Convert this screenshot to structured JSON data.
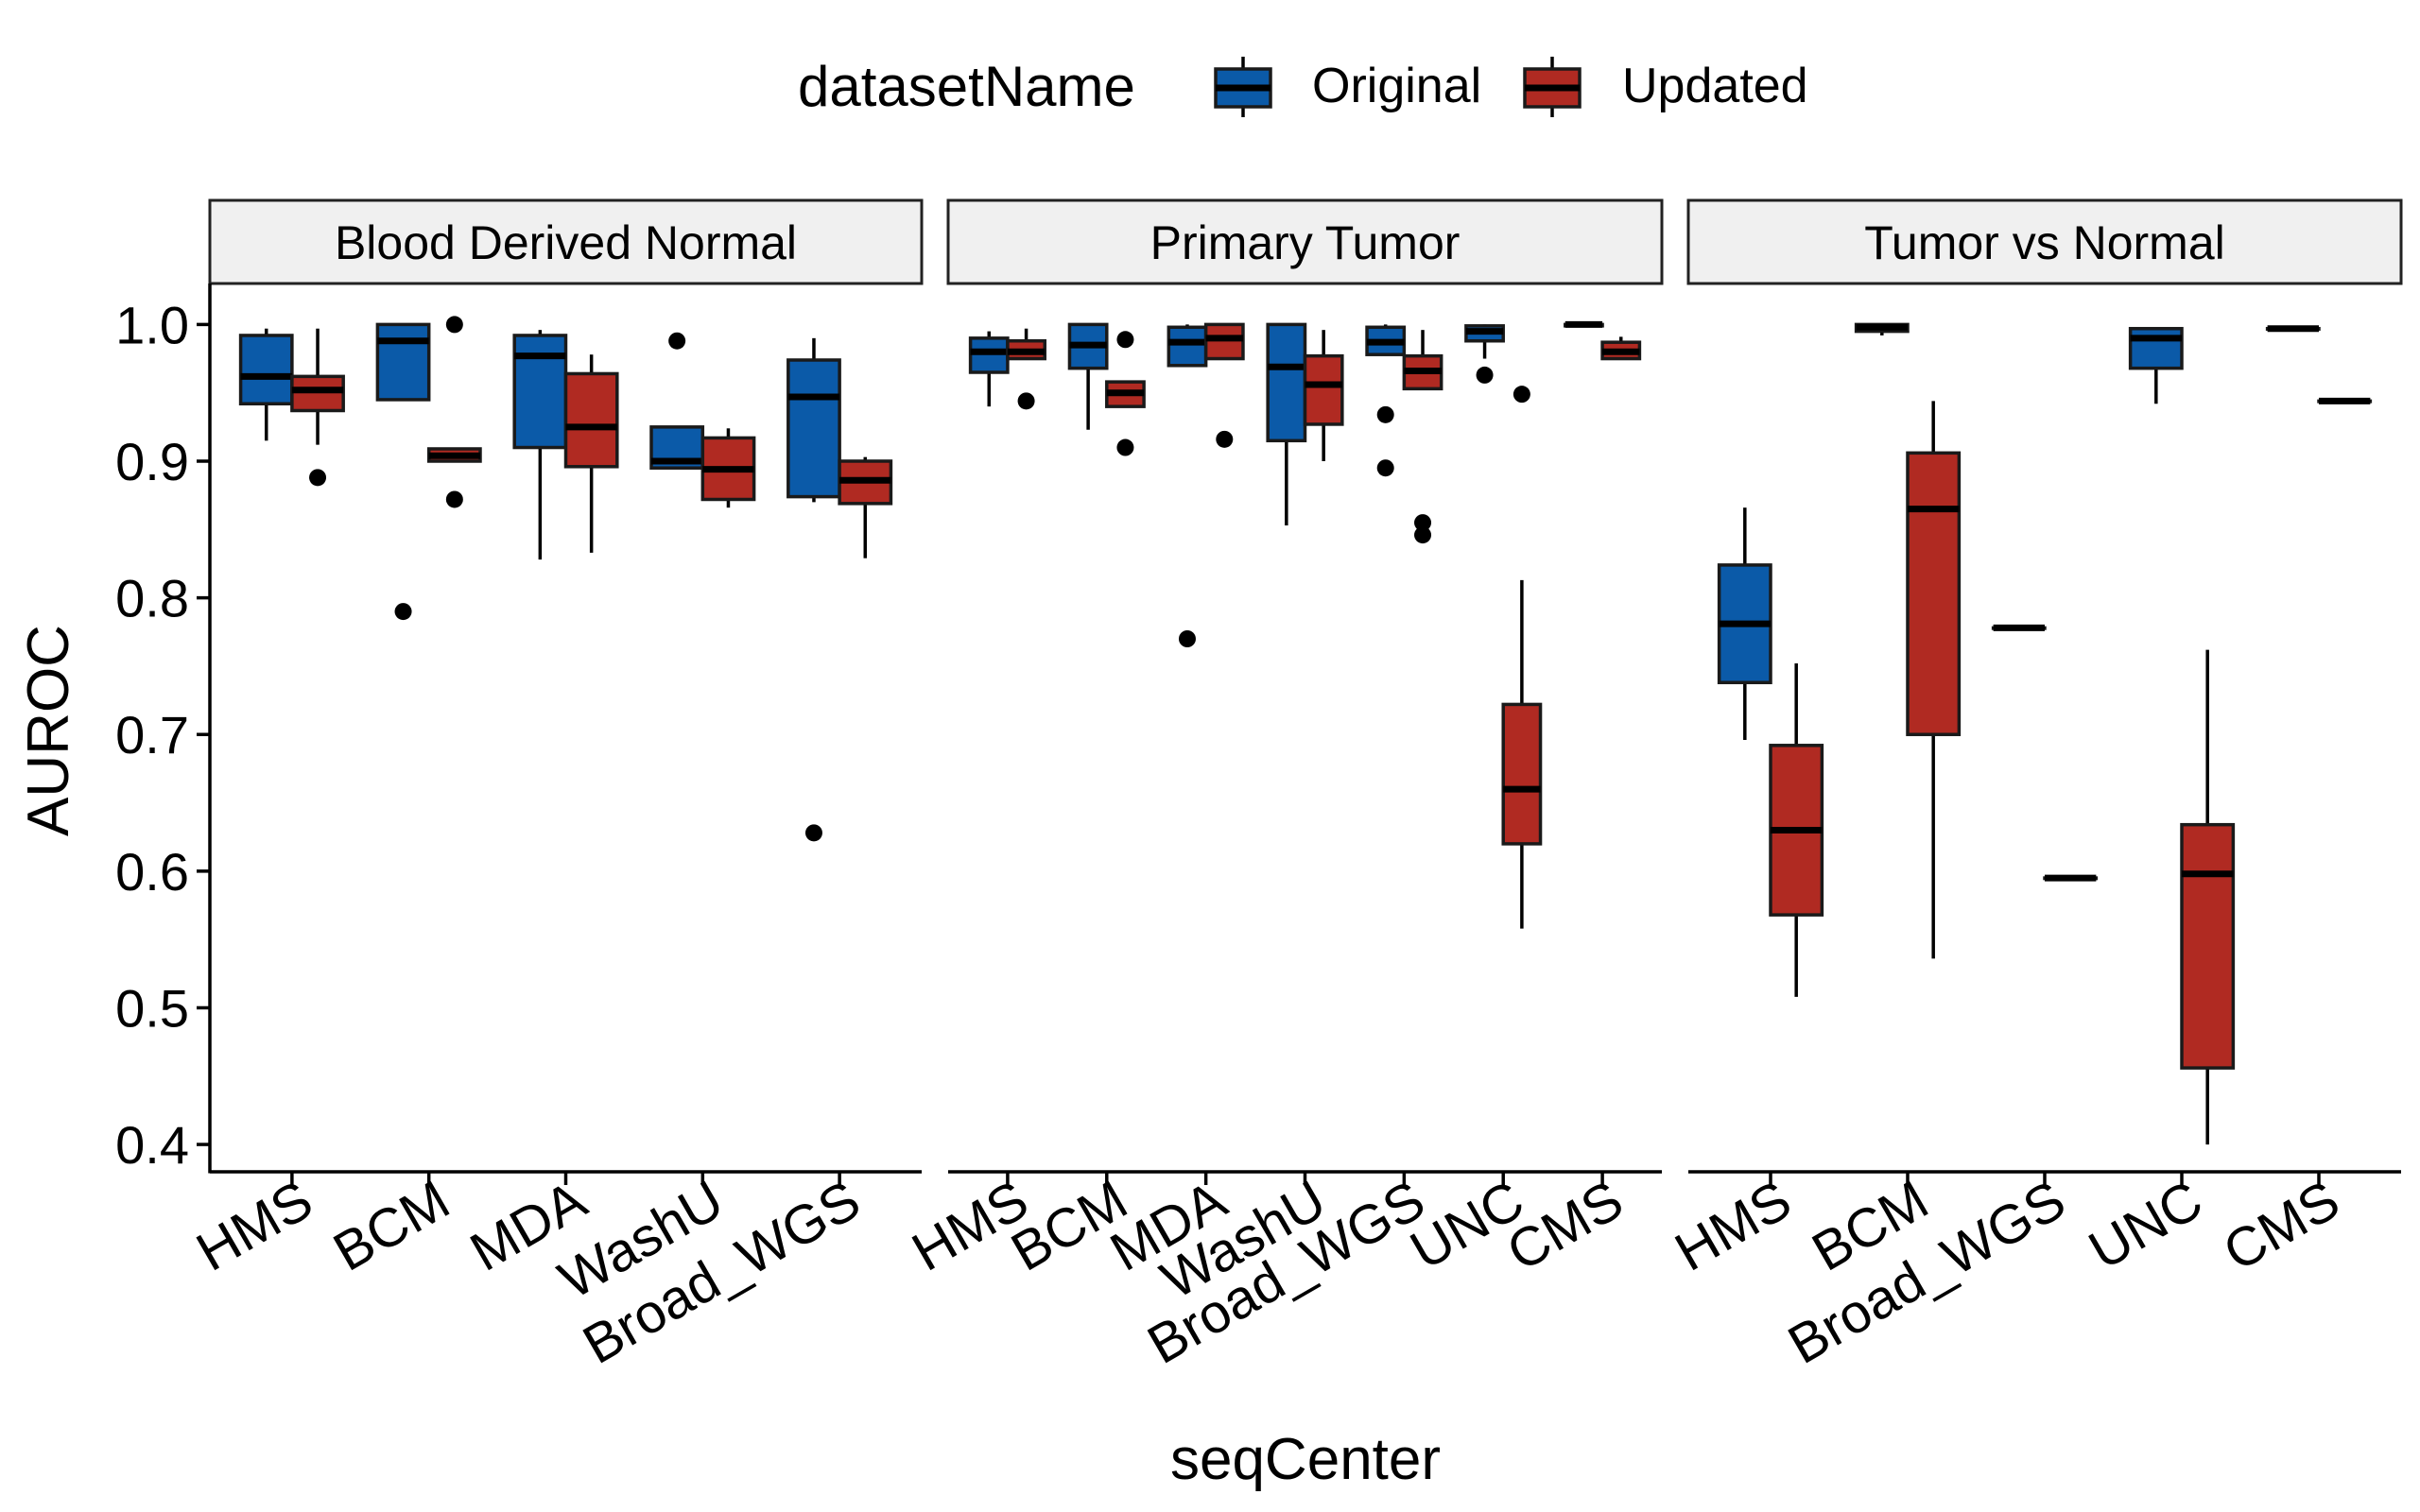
{
  "chart_data": {
    "type": "box",
    "xlabel": "seqCenter",
    "ylabel": "AUROC",
    "ylim": [
      0.38,
      1.03
    ],
    "yticks": [
      "0.4",
      "0.5",
      "0.6",
      "0.7",
      "0.8",
      "0.9",
      "1.0"
    ],
    "grid": false,
    "legend": {
      "title": "datasetName",
      "position": "top",
      "entries": [
        {
          "name": "Original",
          "color": "#0b5aa8"
        },
        {
          "name": "Updated",
          "color": "#b02a22"
        }
      ]
    },
    "panels": [
      {
        "title": "Blood Derived Normal",
        "categories": [
          "HMS",
          "BCM",
          "MDA",
          "WashU",
          "Broad_WGS"
        ],
        "boxes": [
          {
            "category": "HMS",
            "series": "Original",
            "min": 0.915,
            "q1": 0.942,
            "median": 0.962,
            "q3": 0.992,
            "max": 0.997,
            "outliers": []
          },
          {
            "category": "HMS",
            "series": "Updated",
            "min": 0.912,
            "q1": 0.937,
            "median": 0.952,
            "q3": 0.962,
            "max": 0.997,
            "outliers": [
              0.888
            ]
          },
          {
            "category": "BCM",
            "series": "Original",
            "min": 0.945,
            "q1": 0.945,
            "median": 0.988,
            "q3": 1.0,
            "max": 1.0,
            "outliers": [
              0.79
            ]
          },
          {
            "category": "BCM",
            "series": "Updated",
            "min": 0.9,
            "q1": 0.9,
            "median": 0.904,
            "q3": 0.909,
            "max": 0.909,
            "outliers": [
              1.0,
              0.872
            ]
          },
          {
            "category": "MDA",
            "series": "Original",
            "min": 0.828,
            "q1": 0.91,
            "median": 0.977,
            "q3": 0.992,
            "max": 0.996,
            "outliers": []
          },
          {
            "category": "MDA",
            "series": "Updated",
            "min": 0.833,
            "q1": 0.896,
            "median": 0.925,
            "q3": 0.964,
            "max": 0.978,
            "outliers": []
          },
          {
            "category": "WashU",
            "series": "Original",
            "min": 0.895,
            "q1": 0.895,
            "median": 0.9,
            "q3": 0.925,
            "max": 0.925,
            "outliers": [
              0.988
            ]
          },
          {
            "category": "WashU",
            "series": "Updated",
            "min": 0.866,
            "q1": 0.872,
            "median": 0.894,
            "q3": 0.917,
            "max": 0.924,
            "outliers": []
          },
          {
            "category": "Broad_WGS",
            "series": "Original",
            "min": 0.87,
            "q1": 0.874,
            "median": 0.947,
            "q3": 0.974,
            "max": 0.99,
            "outliers": [
              0.628
            ]
          },
          {
            "category": "Broad_WGS",
            "series": "Updated",
            "min": 0.829,
            "q1": 0.869,
            "median": 0.886,
            "q3": 0.9,
            "max": 0.903,
            "outliers": []
          }
        ]
      },
      {
        "title": "Primary Tumor",
        "categories": [
          "HMS",
          "BCM",
          "MDA",
          "WashU",
          "Broad_WGS",
          "UNC",
          "CMS"
        ],
        "boxes": [
          {
            "category": "HMS",
            "series": "Original",
            "min": 0.94,
            "q1": 0.965,
            "median": 0.98,
            "q3": 0.99,
            "max": 0.995,
            "outliers": []
          },
          {
            "category": "HMS",
            "series": "Updated",
            "min": 0.975,
            "q1": 0.975,
            "median": 0.98,
            "q3": 0.988,
            "max": 0.997,
            "outliers": [
              0.944
            ]
          },
          {
            "category": "BCM",
            "series": "Original",
            "min": 0.923,
            "q1": 0.968,
            "median": 0.985,
            "q3": 1.0,
            "max": 1.0,
            "outliers": []
          },
          {
            "category": "BCM",
            "series": "Updated",
            "min": 0.94,
            "q1": 0.94,
            "median": 0.95,
            "q3": 0.958,
            "max": 0.958,
            "outliers": [
              0.989,
              0.91
            ]
          },
          {
            "category": "MDA",
            "series": "Original",
            "min": 0.97,
            "q1": 0.97,
            "median": 0.987,
            "q3": 0.998,
            "max": 1.0,
            "outliers": [
              0.77
            ]
          },
          {
            "category": "MDA",
            "series": "Updated",
            "min": 0.975,
            "q1": 0.975,
            "median": 0.99,
            "q3": 1.0,
            "max": 1.0,
            "outliers": [
              0.916
            ]
          },
          {
            "category": "WashU",
            "series": "Original",
            "min": 0.853,
            "q1": 0.915,
            "median": 0.969,
            "q3": 1.0,
            "max": 1.0,
            "outliers": []
          },
          {
            "category": "WashU",
            "series": "Updated",
            "min": 0.9,
            "q1": 0.927,
            "median": 0.956,
            "q3": 0.977,
            "max": 0.996,
            "outliers": []
          },
          {
            "category": "Broad_WGS",
            "series": "Original",
            "min": 0.978,
            "q1": 0.978,
            "median": 0.987,
            "q3": 0.998,
            "max": 1.0,
            "outliers": [
              0.934,
              0.895
            ]
          },
          {
            "category": "Broad_WGS",
            "series": "Updated",
            "min": 0.953,
            "q1": 0.953,
            "median": 0.966,
            "q3": 0.977,
            "max": 0.996,
            "outliers": [
              0.855,
              0.846
            ]
          },
          {
            "category": "UNC",
            "series": "Original",
            "min": 0.975,
            "q1": 0.988,
            "median": 0.995,
            "q3": 0.999,
            "max": 1.0,
            "outliers": [
              0.963
            ]
          },
          {
            "category": "UNC",
            "series": "Updated",
            "min": 0.558,
            "q1": 0.62,
            "median": 0.66,
            "q3": 0.722,
            "max": 0.813,
            "outliers": [
              0.949
            ]
          },
          {
            "category": "CMS",
            "series": "Original",
            "min": 0.999,
            "q1": 0.999,
            "median": 1.0,
            "q3": 1.0,
            "max": 1.0,
            "outliers": []
          },
          {
            "category": "CMS",
            "series": "Updated",
            "min": 0.975,
            "q1": 0.975,
            "median": 0.98,
            "q3": 0.987,
            "max": 0.991,
            "outliers": []
          }
        ]
      },
      {
        "title": "Tumor vs Normal",
        "categories": [
          "HMS",
          "BCM",
          "Broad_WGS",
          "UNC",
          "CMS"
        ],
        "boxes": [
          {
            "category": "HMS",
            "series": "Original",
            "min": 0.696,
            "q1": 0.738,
            "median": 0.781,
            "q3": 0.824,
            "max": 0.866,
            "outliers": []
          },
          {
            "category": "HMS",
            "series": "Updated",
            "min": 0.508,
            "q1": 0.568,
            "median": 0.63,
            "q3": 0.692,
            "max": 0.752,
            "outliers": []
          },
          {
            "category": "BCM",
            "series": "Original",
            "min": 0.992,
            "q1": 0.995,
            "median": 0.998,
            "q3": 1.0,
            "max": 1.0,
            "outliers": []
          },
          {
            "category": "BCM",
            "series": "Updated",
            "min": 0.536,
            "q1": 0.7,
            "median": 0.865,
            "q3": 0.906,
            "max": 0.944,
            "outliers": []
          },
          {
            "category": "Broad_WGS",
            "series": "Original",
            "min": 0.778,
            "q1": 0.778,
            "median": 0.778,
            "q3": 0.778,
            "max": 0.778,
            "outliers": []
          },
          {
            "category": "Broad_WGS",
            "series": "Updated",
            "min": 0.595,
            "q1": 0.595,
            "median": 0.595,
            "q3": 0.595,
            "max": 0.595,
            "outliers": []
          },
          {
            "category": "UNC",
            "series": "Original",
            "min": 0.942,
            "q1": 0.968,
            "median": 0.99,
            "q3": 0.997,
            "max": 0.997,
            "outliers": []
          },
          {
            "category": "UNC",
            "series": "Updated",
            "min": 0.4,
            "q1": 0.456,
            "median": 0.598,
            "q3": 0.634,
            "max": 0.762,
            "outliers": []
          },
          {
            "category": "CMS",
            "series": "Original",
            "min": 0.997,
            "q1": 0.997,
            "median": 0.997,
            "q3": 0.997,
            "max": 0.997,
            "outliers": []
          },
          {
            "category": "CMS",
            "series": "Updated",
            "min": 0.944,
            "q1": 0.944,
            "median": 0.944,
            "q3": 0.944,
            "max": 0.944,
            "outliers": []
          }
        ]
      }
    ]
  }
}
